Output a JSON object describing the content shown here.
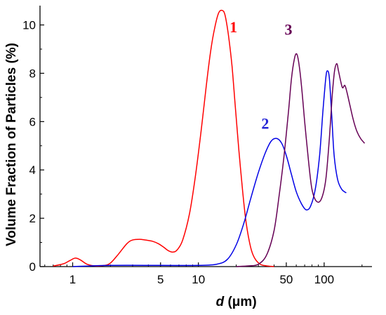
{
  "chart_data": {
    "type": "line",
    "title": "",
    "xlabel_var": "d",
    "xlabel_unit": " (μm)",
    "ylabel": "Volume Fraction of Particles (%)",
    "x_scale": "log",
    "xlim": [
      0.55,
      240
    ],
    "ylim": [
      0,
      10.8
    ],
    "x_ticks": [
      1,
      5,
      10,
      50,
      100
    ],
    "x_tick_labels": [
      "1",
      "5",
      "10",
      "50",
      "100"
    ],
    "y_ticks": [
      0,
      2,
      4,
      6,
      8,
      10
    ],
    "y_tick_labels": [
      "0",
      "2",
      "4",
      "6",
      "8",
      "10"
    ],
    "grid": false,
    "series": [
      {
        "name": "1",
        "color": "#ff0000",
        "x": [
          0.7,
          0.85,
          0.95,
          1.05,
          1.15,
          1.3,
          1.5,
          1.8,
          2.0,
          2.3,
          2.7,
          3.0,
          3.4,
          3.8,
          4.3,
          4.8,
          5.3,
          5.8,
          6.3,
          6.8,
          7.5,
          8.5,
          9.5,
          10.5,
          11.5,
          12.5,
          13.5,
          14.5,
          15.5,
          16.3,
          17.3,
          18.5,
          19.8,
          21.0,
          22.5,
          24.0,
          26.0,
          28.0,
          31.0,
          35.0,
          40.0
        ],
        "y": [
          0.02,
          0.12,
          0.25,
          0.35,
          0.28,
          0.1,
          0.03,
          0.05,
          0.15,
          0.5,
          0.95,
          1.1,
          1.13,
          1.1,
          1.05,
          0.95,
          0.8,
          0.65,
          0.6,
          0.7,
          1.1,
          2.2,
          3.8,
          5.6,
          7.4,
          8.9,
          9.9,
          10.5,
          10.6,
          10.4,
          9.6,
          8.3,
          6.4,
          4.8,
          3.1,
          1.8,
          0.8,
          0.35,
          0.1,
          0.03,
          0.0
        ]
      },
      {
        "name": "2",
        "color": "#0000e6",
        "x": [
          1.0,
          2.0,
          5.0,
          10.0,
          14.0,
          17.0,
          20.0,
          23.0,
          26.0,
          30.0,
          34.0,
          38.0,
          42.0,
          46.0,
          50.0,
          55.0,
          60.0,
          66.0,
          72.0,
          78.0,
          85.0,
          92.0,
          98.0,
          103.0,
          106.0,
          110.0,
          115.0,
          120.0,
          128.0,
          138.0,
          150.0
        ],
        "y": [
          0.0,
          0.05,
          0.05,
          0.05,
          0.1,
          0.3,
          0.9,
          1.8,
          2.8,
          3.9,
          4.7,
          5.2,
          5.3,
          5.1,
          4.6,
          3.8,
          3.1,
          2.6,
          2.35,
          2.5,
          3.2,
          4.6,
          6.5,
          7.8,
          8.1,
          7.8,
          6.2,
          4.6,
          3.6,
          3.2,
          3.05
        ]
      },
      {
        "name": "3",
        "color": "#660055",
        "x": [
          20.0,
          25.0,
          30.0,
          35.0,
          40.0,
          44.0,
          48.0,
          52.0,
          55.0,
          58.0,
          60.5,
          63.0,
          66.0,
          70.0,
          75.0,
          80.0,
          87.0,
          95.0,
          103.0,
          110.0,
          116.0,
          121.0,
          126.0,
          130.0,
          135.0,
          140.0,
          146.0,
          152.0,
          160.0,
          170.0,
          182.0,
          195.0,
          210.0
        ],
        "y": [
          0.0,
          0.03,
          0.1,
          0.5,
          1.5,
          3.0,
          4.6,
          6.4,
          7.8,
          8.6,
          8.8,
          8.4,
          7.5,
          6.0,
          4.4,
          3.2,
          2.7,
          2.8,
          3.6,
          5.3,
          7.1,
          8.1,
          8.4,
          8.1,
          7.7,
          7.4,
          7.5,
          7.2,
          6.7,
          6.1,
          5.6,
          5.3,
          5.1
        ]
      }
    ],
    "annotations": [
      {
        "text": "1",
        "x": 19,
        "y": 9.7,
        "color": "#ff0000"
      },
      {
        "text": "2",
        "x": 34,
        "y": 5.7,
        "color": "#2424d6"
      },
      {
        "text": "3",
        "x": 52,
        "y": 9.6,
        "color": "#660055"
      }
    ]
  }
}
